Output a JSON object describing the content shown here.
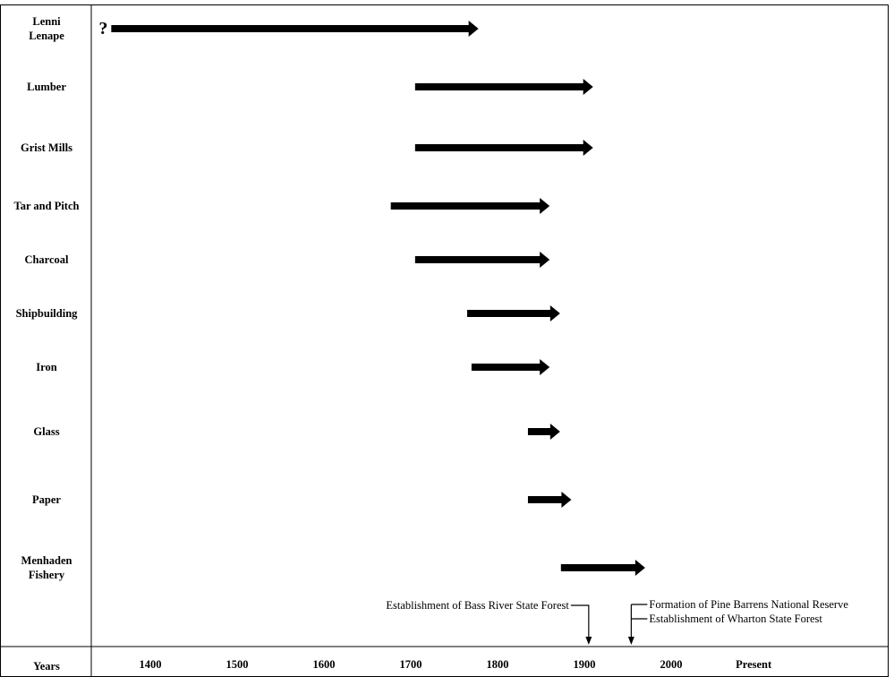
{
  "chart_data": {
    "type": "timeline",
    "xlabel": "Years",
    "ticks": [
      {
        "value": 1400,
        "label": "1400"
      },
      {
        "value": 1500,
        "label": "1500"
      },
      {
        "value": 1600,
        "label": "1600"
      },
      {
        "value": 1700,
        "label": "1700"
      },
      {
        "value": 1800,
        "label": "1800"
      },
      {
        "value": 1900,
        "label": "1900"
      },
      {
        "value": 2000,
        "label": "2000"
      },
      {
        "value": 2095,
        "label": "Present"
      }
    ],
    "xlim": [
      1335,
      2260
    ],
    "grid": false,
    "unknown_start_marker": "?",
    "series": [
      {
        "label": "Lenni\nLenape",
        "start": 1355,
        "end": 1778,
        "unknown_start": true
      },
      {
        "label": "Lumber",
        "start": 1705,
        "end": 1910
      },
      {
        "label": "Grist Mills",
        "start": 1705,
        "end": 1910
      },
      {
        "label": "Tar and Pitch",
        "start": 1677,
        "end": 1860
      },
      {
        "label": "Charcoal",
        "start": 1705,
        "end": 1860
      },
      {
        "label": "Shipbuilding",
        "start": 1765,
        "end": 1872
      },
      {
        "label": "Iron",
        "start": 1770,
        "end": 1860
      },
      {
        "label": "Glass",
        "start": 1835,
        "end": 1872
      },
      {
        "label": "Paper",
        "start": 1835,
        "end": 1885
      },
      {
        "label": "Menhaden\nFishery",
        "start": 1873,
        "end": 1970
      }
    ],
    "events": [
      {
        "year": 1905,
        "text": "Establishment of Bass River State Forest",
        "align": "left"
      },
      {
        "year": 1954,
        "text": "Formation of Pine Barrens National Reserve",
        "align": "right"
      },
      {
        "year": 1954,
        "text": "Establishment of Wharton State Forest",
        "align": "right"
      }
    ]
  }
}
